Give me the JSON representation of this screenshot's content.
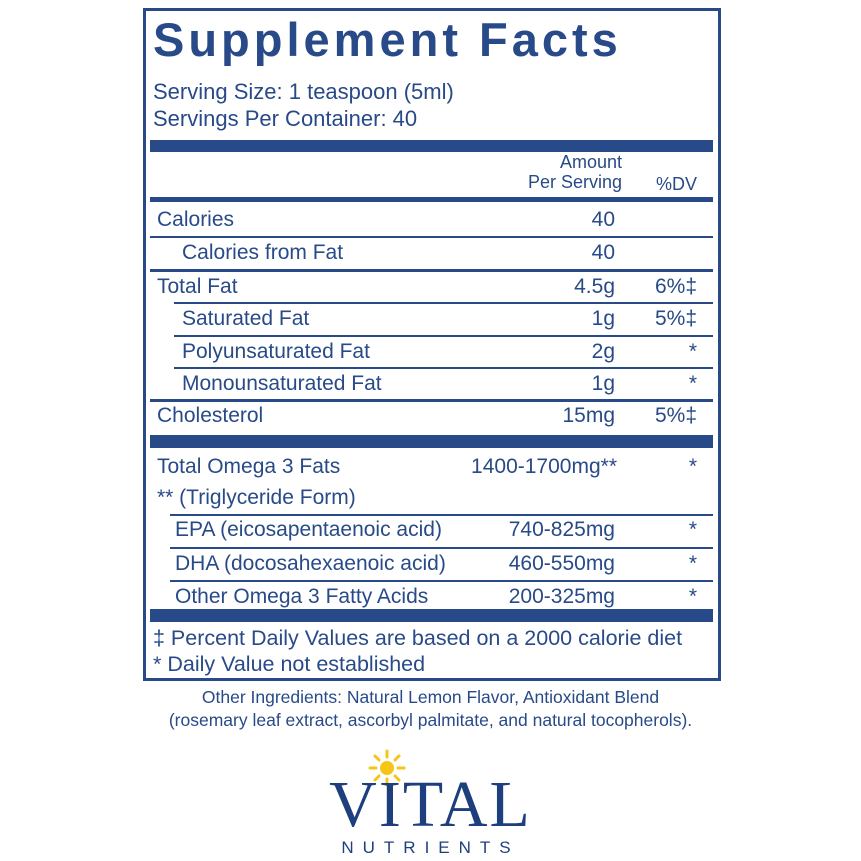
{
  "title": "Supplement Facts",
  "serving_size": "Serving Size: 1 teaspoon (5ml)",
  "servings_per_container": "Servings Per Container: 40",
  "header": {
    "amount_line1": "Amount",
    "amount_line2": "Per Serving",
    "dv": "%DV"
  },
  "rows": [
    {
      "name": "Calories",
      "amount": "40"
    },
    {
      "name": "Calories from Fat",
      "amount": "40"
    },
    {
      "name": "Total Fat",
      "amount": "4.5g",
      "dv": "6%‡"
    },
    {
      "name": "Saturated Fat",
      "amount": "1g",
      "dv": "5%‡"
    },
    {
      "name": "Polyunsaturated Fat",
      "amount": "2g",
      "dv": "*"
    },
    {
      "name": "Monounsaturated Fat",
      "amount": "1g",
      "dv": "*"
    },
    {
      "name": "Cholesterol",
      "amount": "15mg",
      "dv": "5%‡"
    }
  ],
  "omega": {
    "total": {
      "name": "Total Omega 3 Fats",
      "amount": "1400-1700mg**",
      "dv": "*"
    },
    "note": "** (Triglyceride Form)",
    "rows": [
      {
        "name": "EPA (eicosapentaenoic acid)",
        "amount": "740-825mg",
        "dv": "*"
      },
      {
        "name": "DHA (docosahexaenoic acid)",
        "amount": "460-550mg",
        "dv": "*"
      },
      {
        "name": "Other Omega 3 Fatty Acids",
        "amount": "200-325mg",
        "dv": "*"
      }
    ]
  },
  "footnotes": [
    "‡ Percent Daily Values are based on a 2000 calorie diet",
    "* Daily Value not established"
  ],
  "other_ingredients": [
    "Other Ingredients: Natural Lemon Flavor, Antioxidant Blend",
    "(rosemary leaf extract, ascorbyl palmitate, and natural tocopherols)."
  ],
  "logo": {
    "brand": "VITAL",
    "tagline": "NUTRIENTS"
  }
}
